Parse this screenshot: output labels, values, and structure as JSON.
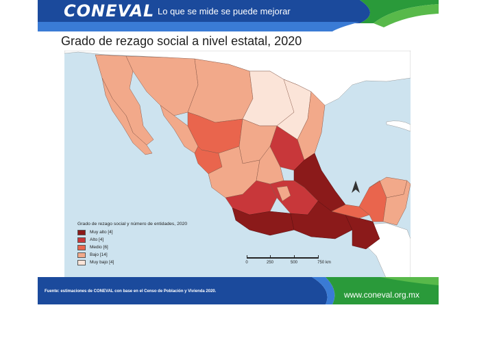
{
  "header": {
    "logo": "CONEVAL",
    "tagline": "Lo que se mide se puede mejorar"
  },
  "title": "Grado de rezago social a nivel estatal, 2020",
  "legend": {
    "title": "Grado de rezago social y número de entidades, 2020",
    "items": [
      {
        "label": "Muy alto [4]",
        "color": "#8b1a1a"
      },
      {
        "label": "Alto [4]",
        "color": "#c8373a"
      },
      {
        "label": "Medio [6]",
        "color": "#e9654d"
      },
      {
        "label": "Bajo [14]",
        "color": "#f2a98a"
      },
      {
        "label": "Muy bajo [4]",
        "color": "#fbe4d8"
      }
    ]
  },
  "scale": {
    "ticks": [
      "0",
      "250",
      "500",
      "750 km"
    ]
  },
  "footer": {
    "source": "Fuente: estimaciones de CONEVAL con base en el Censo de Población y Vivienda 2020.",
    "url": "www.coneval.org.mx"
  },
  "colors": {
    "brand_blue": "#1b4a9c",
    "brand_green": "#2a9a3a",
    "sea": "#cde3ef",
    "land_other": "#ffffff"
  }
}
